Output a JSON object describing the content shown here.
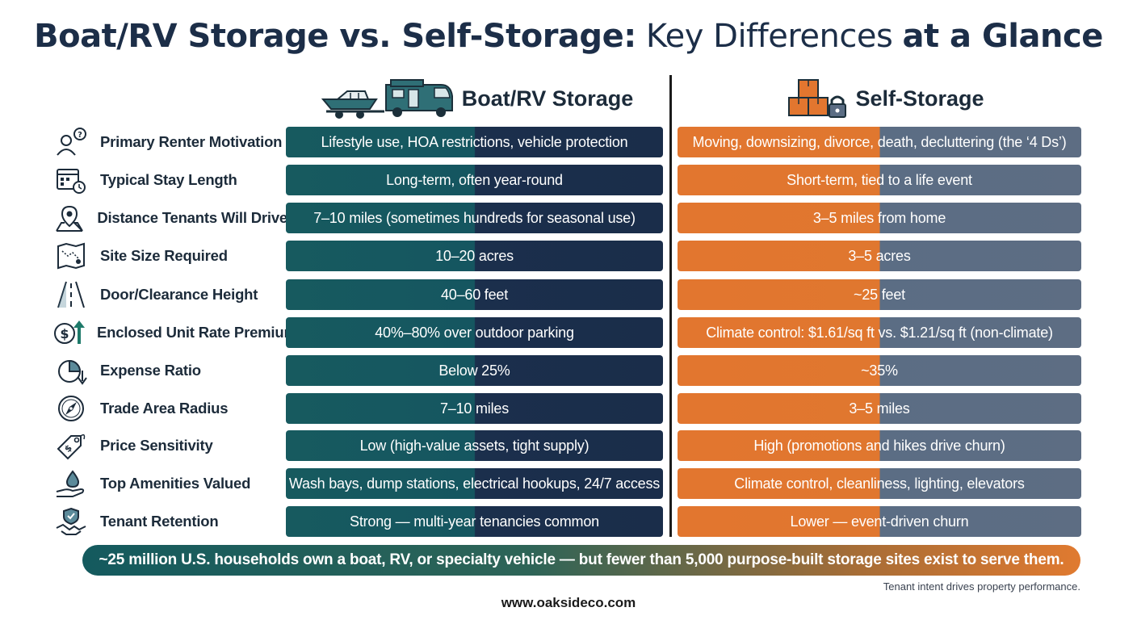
{
  "title": {
    "part1": "Boat/RV Storage vs. Self-Storage:",
    "part2": " Key Differences ",
    "part3": "at a Glance"
  },
  "columns": {
    "boat_rv": "Boat/RV Storage",
    "self_storage": "Self-Storage"
  },
  "rows": [
    {
      "label": "Primary Renter Motivation",
      "icon": "person-question-icon",
      "boat_rv": "Lifestyle use, HOA restrictions, vehicle protection",
      "self_storage": "Moving, downsizing, divorce, death, decluttering (the ‘4 Ds’)"
    },
    {
      "label": "Typical Stay Length",
      "icon": "calendar-clock-icon",
      "boat_rv": "Long-term, often year-round",
      "self_storage": "Short-term, tied to a life event"
    },
    {
      "label": "Distance Tenants Will Drive",
      "icon": "map-pin-icon",
      "boat_rv": "7–10 miles (sometimes hundreds for seasonal use)",
      "self_storage": "3–5 miles from home"
    },
    {
      "label": "Site Size Required",
      "icon": "site-map-icon",
      "boat_rv": "10–20 acres",
      "self_storage": "3–5 acres"
    },
    {
      "label": "Door/Clearance Height",
      "icon": "road-icon",
      "boat_rv": "40–60 feet",
      "self_storage": "~25 feet"
    },
    {
      "label": "Enclosed Unit Rate Premium",
      "icon": "dollar-arrow-up-icon",
      "boat_rv": "40%–80% over outdoor parking",
      "self_storage": "Climate control: $1.61/sq ft vs. $1.21/sq ft (non-climate)"
    },
    {
      "label": "Expense Ratio",
      "icon": "pie-chart-arrow-icon",
      "boat_rv": "Below 25%",
      "self_storage": "~35%"
    },
    {
      "label": "Trade Area Radius",
      "icon": "compass-icon",
      "boat_rv": "7–10 miles",
      "self_storage": "3–5 miles"
    },
    {
      "label": "Price Sensitivity",
      "icon": "price-tag-icon",
      "boat_rv": "Low (high-value assets, tight supply)",
      "self_storage": "High (promotions and hikes drive churn)"
    },
    {
      "label": "Top Amenities Valued",
      "icon": "hand-water-drop-icon",
      "boat_rv": "Wash bays, dump stations, electrical hookups, 24/7 access",
      "self_storage": "Climate control, cleanliness, lighting, elevators"
    },
    {
      "label": "Tenant Retention",
      "icon": "handshake-shield-icon",
      "boat_rv": "Strong — multi-year tenancies common",
      "self_storage": "Lower — event-driven churn"
    }
  ],
  "banner": "~25 million U.S. households own a boat, RV, or specialty vehicle — but fewer than 5,000 purpose-built storage sites exist to serve them.",
  "tagline": "Tenant intent drives property performance.",
  "website": "www.oaksideco.com",
  "colors": {
    "boat_teal": "#175a5f",
    "boat_navy": "#1b2f4c",
    "self_orange": "#e2762f",
    "self_slate": "#5b6d84"
  }
}
